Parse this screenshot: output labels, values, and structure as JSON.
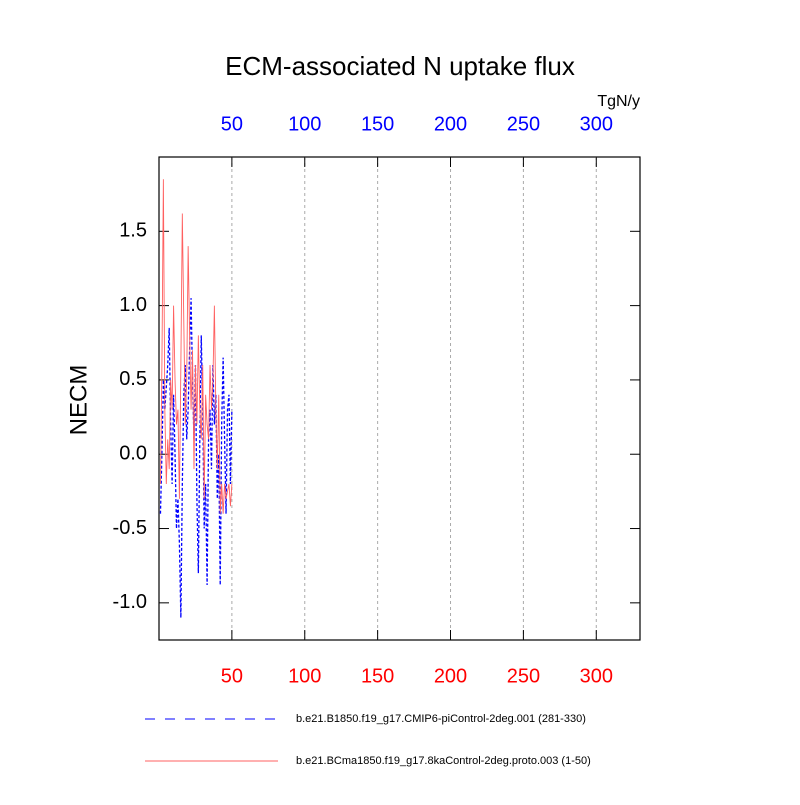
{
  "chart_data": {
    "type": "line",
    "title": "ECM-associated N uptake flux",
    "ylabel": "NECM",
    "top_axis_label": "TgN/y",
    "x": [
      1,
      2,
      3,
      4,
      5,
      6,
      7,
      8,
      9,
      10,
      11,
      12,
      13,
      14,
      15,
      16,
      17,
      18,
      19,
      20,
      21,
      22,
      23,
      24,
      25,
      26,
      27,
      28,
      29,
      30,
      31,
      32,
      33,
      34,
      35,
      36,
      37,
      38,
      39,
      40,
      41,
      42,
      43,
      44,
      45,
      46,
      47,
      48,
      49,
      50
    ],
    "series": [
      {
        "name": "b.e21.B1850.f19_g17.CMIP6-piControl-2deg.001 (281-330)",
        "color": "#0000ff",
        "dash": true,
        "values": [
          -0.4,
          0.0,
          0.5,
          0.3,
          0.45,
          0.6,
          0.85,
          0.2,
          -0.2,
          0.4,
          0.0,
          -0.5,
          -0.3,
          -0.6,
          -1.1,
          -0.2,
          0.4,
          0.6,
          0.1,
          0.3,
          0.7,
          1.05,
          0.5,
          0.1,
          0.6,
          -0.3,
          -0.8,
          0.1,
          0.8,
          0.3,
          -0.5,
          -0.2,
          -0.88,
          0.1,
          0.3,
          -0.1,
          0.6,
          0.2,
          0.4,
          -0.3,
          0.0,
          -0.88,
          0.2,
          0.65,
          0.1,
          -0.4,
          0.3,
          0.4,
          -0.2,
          0.3
        ]
      },
      {
        "name": "b.e21.BCma1850.f19_g17.8kaControl-2deg.proto.003 (1-50)",
        "color": "#ff6060",
        "dash": false,
        "values": [
          -0.2,
          0.6,
          1.85,
          0.3,
          -0.2,
          0.1,
          -0.1,
          0.5,
          0.3,
          1.0,
          0.5,
          0.2,
          0.3,
          -0.3,
          0.6,
          1.62,
          0.9,
          0.2,
          0.5,
          1.4,
          0.8,
          0.3,
          0.7,
          -0.1,
          0.6,
          0.2,
          0.8,
          0.3,
          0.1,
          0.6,
          -0.3,
          0.4,
          0.2,
          0.1,
          0.6,
          0.3,
          0.5,
          1.0,
          0.3,
          -0.1,
          0.4,
          -0.4,
          -0.2,
          -0.4,
          -0.2,
          -0.3,
          -0.25,
          -0.2,
          -0.35,
          -0.2
        ]
      }
    ],
    "xlim": [
      0,
      330
    ],
    "xticks": [
      50,
      100,
      150,
      200,
      250,
      300
    ],
    "ylim": [
      -1.25,
      2.0
    ],
    "yticks": [
      {
        "value": 1.5,
        "label": "1.5"
      },
      {
        "value": 1.0,
        "label": "1.0"
      },
      {
        "value": 0.5,
        "label": "0.5"
      },
      {
        "value": 0.0,
        "label": "0.0"
      },
      {
        "value": -0.5,
        "label": "-0.5"
      },
      {
        "value": -1.0,
        "label": "-1.0"
      }
    ],
    "top_tick_color": "#0000ff",
    "bottom_tick_color": "#ff0000",
    "grid": true
  }
}
